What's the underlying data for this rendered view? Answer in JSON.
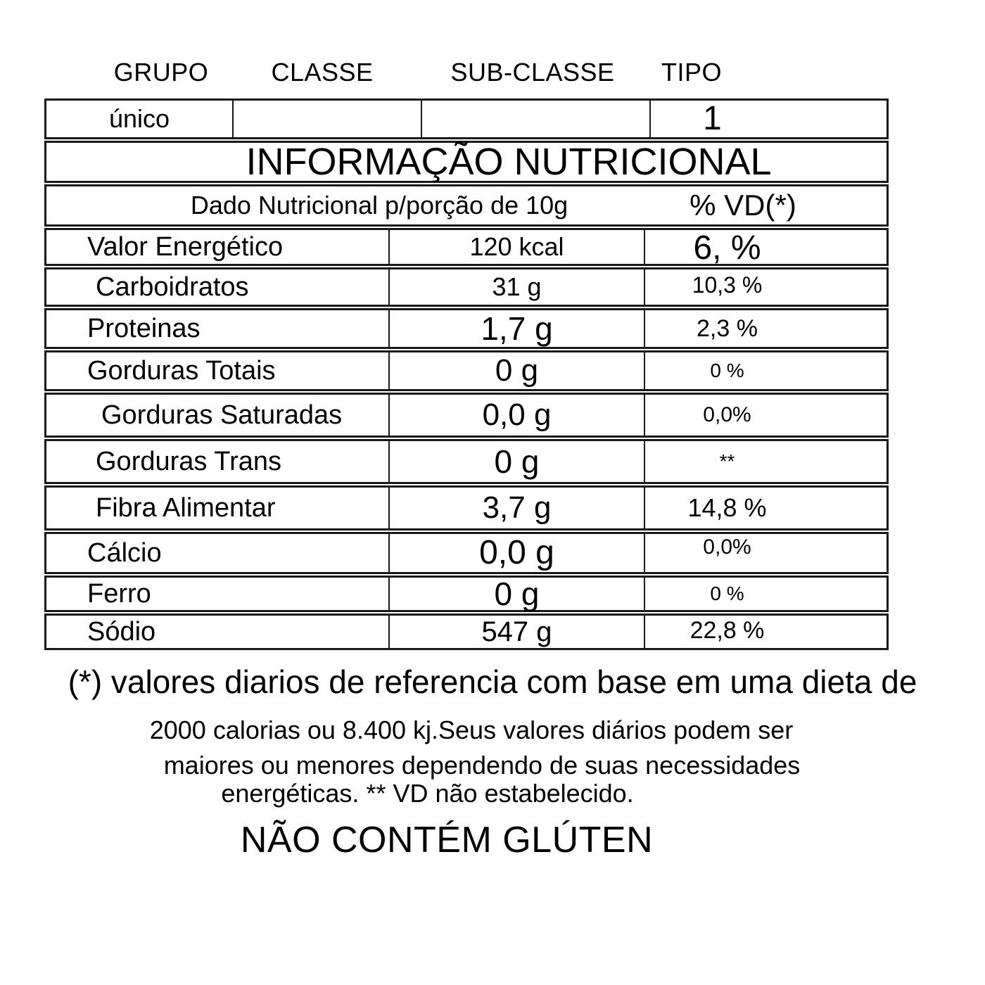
{
  "classification": {
    "columns": [
      "GRUPO",
      "CLASSE",
      "SUB-CLASSE",
      "TIPO"
    ],
    "row": {
      "grupo": "único",
      "classe": "",
      "sub_classe": "",
      "tipo": "1"
    }
  },
  "table": {
    "title": "INFORMAÇÃO NUTRICIONAL",
    "subtitle": "Dado Nutricional p/porção de 10g",
    "vd_header": "% VD(*)",
    "rows": [
      {
        "label": "Valor Energético",
        "value": "120 kcal",
        "vd": "6, %"
      },
      {
        "label": "Carboidratos",
        "value": "31 g",
        "vd": "10,3 %"
      },
      {
        "label": "Proteinas",
        "value": "1,7 g",
        "vd": "2,3 %"
      },
      {
        "label": "Gorduras Totais",
        "value": "0 g",
        "vd": "0 %"
      },
      {
        "label": "Gorduras Saturadas",
        "value": "0,0 g",
        "vd": "0,0%"
      },
      {
        "label": "Gorduras Trans",
        "value": "0 g",
        "vd": "**"
      },
      {
        "label": "Fibra Alimentar",
        "value": "3,7 g",
        "vd": "14,8 %"
      },
      {
        "label": "Cálcio",
        "value": "0,0 g",
        "vd": "0,0%"
      },
      {
        "label": "Ferro",
        "value": "0 g",
        "vd": "0 %"
      },
      {
        "label": "Sódio",
        "value": "547 g",
        "vd": "22,8 %"
      }
    ]
  },
  "footnote": {
    "line1": "(*) valores diarios de referencia com base em uma dieta de",
    "line2": "2000 calorias ou 8.400 kj.Seus valores diários podem ser",
    "line3": "maiores ou menores dependendo de suas necessidades",
    "line4": "energéticas. ** VD não estabelecido."
  },
  "gluten_notice": "NÃO CONTÉM GLÚTEN",
  "colors": {
    "text": "#000000",
    "border": "#191919",
    "background": "#ffffff"
  }
}
